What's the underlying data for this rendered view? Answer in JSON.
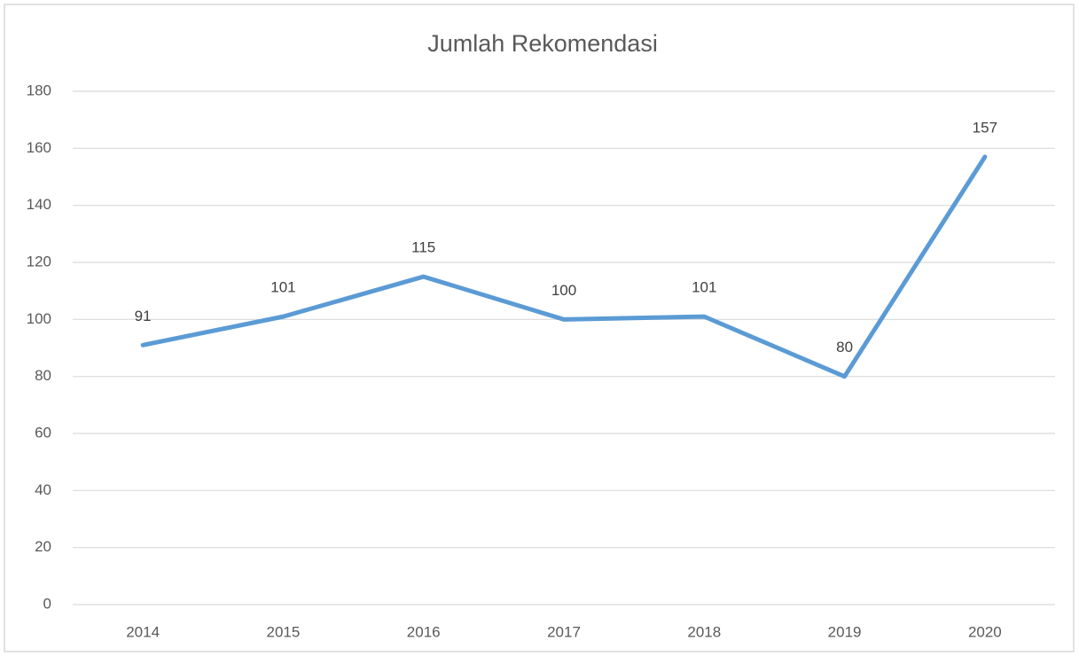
{
  "chart_data": {
    "type": "line",
    "title": "Jumlah Rekomendasi",
    "categories": [
      "2014",
      "2015",
      "2016",
      "2017",
      "2018",
      "2019",
      "2020"
    ],
    "values": [
      91,
      101,
      115,
      100,
      101,
      80,
      157
    ],
    "color": "#5b9bd5",
    "ylim": [
      0,
      180
    ],
    "yticks": [
      0,
      20,
      40,
      60,
      80,
      100,
      120,
      140,
      160,
      180
    ],
    "grid": true
  }
}
